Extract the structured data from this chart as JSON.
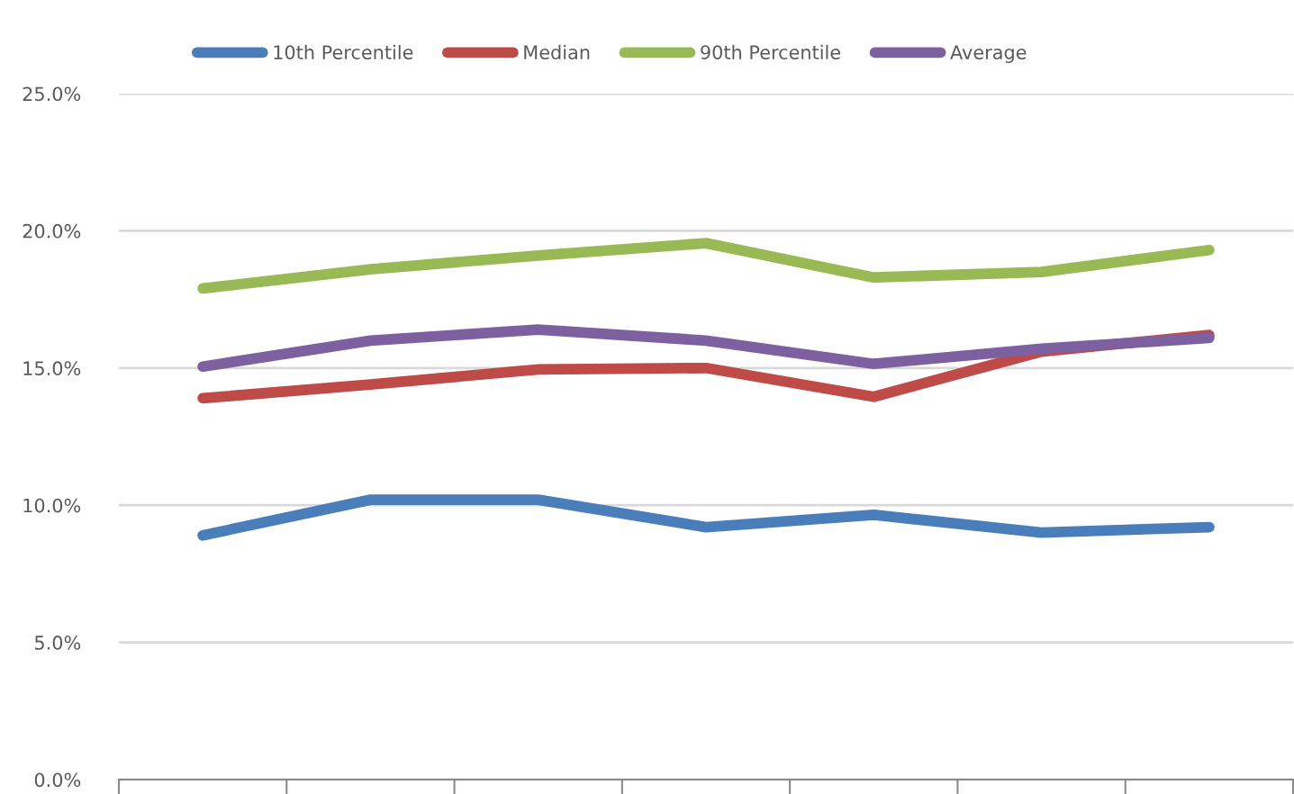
{
  "chart_data": {
    "type": "line",
    "categories": [
      null,
      null,
      null,
      null,
      null,
      null,
      null
    ],
    "series": [
      {
        "name": "10th Percentile",
        "color": "#4a7ebb",
        "values": [
          8.9,
          10.2,
          10.2,
          9.2,
          9.65,
          9.0,
          9.2
        ]
      },
      {
        "name": "Median",
        "color": "#be4b48",
        "values": [
          13.9,
          14.4,
          14.95,
          15.0,
          13.95,
          15.6,
          16.2
        ]
      },
      {
        "name": "90th Percentile",
        "color": "#98b954",
        "values": [
          17.9,
          18.6,
          19.1,
          19.55,
          18.3,
          18.5,
          19.3
        ]
      },
      {
        "name": "Average",
        "color": "#7d60a0",
        "values": [
          15.05,
          16.0,
          16.4,
          16.0,
          15.15,
          15.7,
          16.1
        ]
      }
    ],
    "ylim": [
      0,
      25
    ],
    "yticks": [
      {
        "value": 0,
        "label": "0.0%"
      },
      {
        "value": 5,
        "label": "5.0%"
      },
      {
        "value": 10,
        "label": "10.0%"
      },
      {
        "value": 15,
        "label": "15.0%"
      },
      {
        "value": 20,
        "label": "20.0%"
      },
      {
        "value": 25,
        "label": "25.0%"
      }
    ],
    "grid": "y",
    "legend": "top",
    "line_style": "solid"
  }
}
